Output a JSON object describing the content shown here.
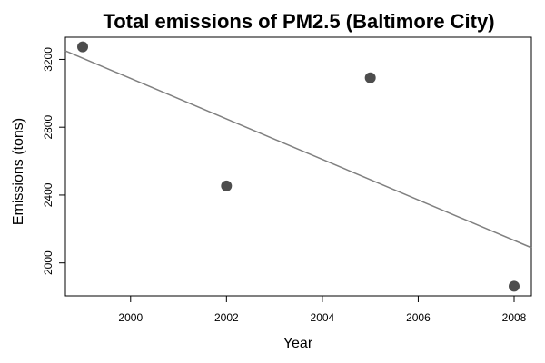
{
  "chart_data": {
    "type": "scatter",
    "title": "Total emissions of PM2.5 (Baltimore City)",
    "xlabel": "Year",
    "ylabel": "Emissions (tons)",
    "x": [
      1999,
      2002,
      2005,
      2008
    ],
    "y": [
      3274.18,
      2453.92,
      3091.35,
      1862.28
    ],
    "xlim": [
      1998.64,
      2008.36
    ],
    "ylim": [
      1805.7,
      3330.8
    ],
    "xticks": [
      2000,
      2002,
      2004,
      2006,
      2008
    ],
    "yticks": [
      2000,
      2400,
      2800,
      3200
    ],
    "xtick_labels": [
      "2000",
      "2002",
      "2004",
      "2006",
      "2008"
    ],
    "ytick_labels": [
      "2000",
      "2400",
      "2800",
      "3200"
    ],
    "trend_line": {
      "type": "linear-fit",
      "start": [
        1998.64,
        3250
      ],
      "end": [
        2008.36,
        2090
      ]
    },
    "grid": false,
    "legend": "none",
    "colors": {
      "points": "#4d4d4d",
      "trend_line": "#808080",
      "axes": "#000000"
    }
  }
}
